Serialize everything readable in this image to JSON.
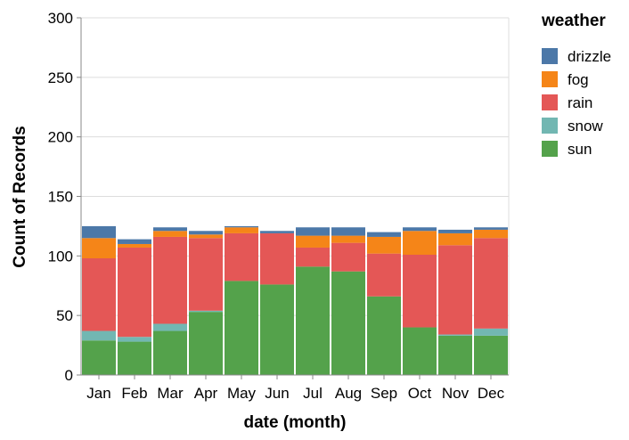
{
  "chart_data": {
    "type": "bar",
    "stacked": true,
    "xlabel": "date (month)",
    "ylabel": "Count of Records",
    "ylim": [
      0,
      300
    ],
    "yticks": [
      0,
      50,
      100,
      150,
      200,
      250,
      300
    ],
    "grid": true,
    "legend": {
      "title": "weather",
      "position": "right"
    },
    "categories": [
      "Jan",
      "Feb",
      "Mar",
      "Apr",
      "May",
      "Jun",
      "Jul",
      "Aug",
      "Sep",
      "Oct",
      "Nov",
      "Dec"
    ],
    "series": [
      {
        "name": "sun",
        "color": "#54a24b",
        "values": [
          29,
          28,
          37,
          53,
          79,
          76,
          91,
          87,
          66,
          40,
          33,
          33
        ]
      },
      {
        "name": "snow",
        "color": "#72b7b2",
        "values": [
          8,
          4,
          6,
          1,
          0,
          0,
          0,
          0,
          0,
          0,
          1,
          6
        ]
      },
      {
        "name": "rain",
        "color": "#e45756",
        "values": [
          61,
          75,
          73,
          61,
          40,
          43,
          16,
          24,
          36,
          61,
          75,
          76
        ]
      },
      {
        "name": "fog",
        "color": "#f58518",
        "values": [
          17,
          3,
          5,
          3,
          5,
          0,
          10,
          6,
          14,
          20,
          10,
          7
        ]
      },
      {
        "name": "drizzle",
        "color": "#4c78a8",
        "values": [
          10,
          4,
          3,
          3,
          1,
          2,
          7,
          7,
          4,
          3,
          3,
          2
        ]
      }
    ],
    "legend_order": [
      "drizzle",
      "fog",
      "rain",
      "snow",
      "sun"
    ]
  }
}
